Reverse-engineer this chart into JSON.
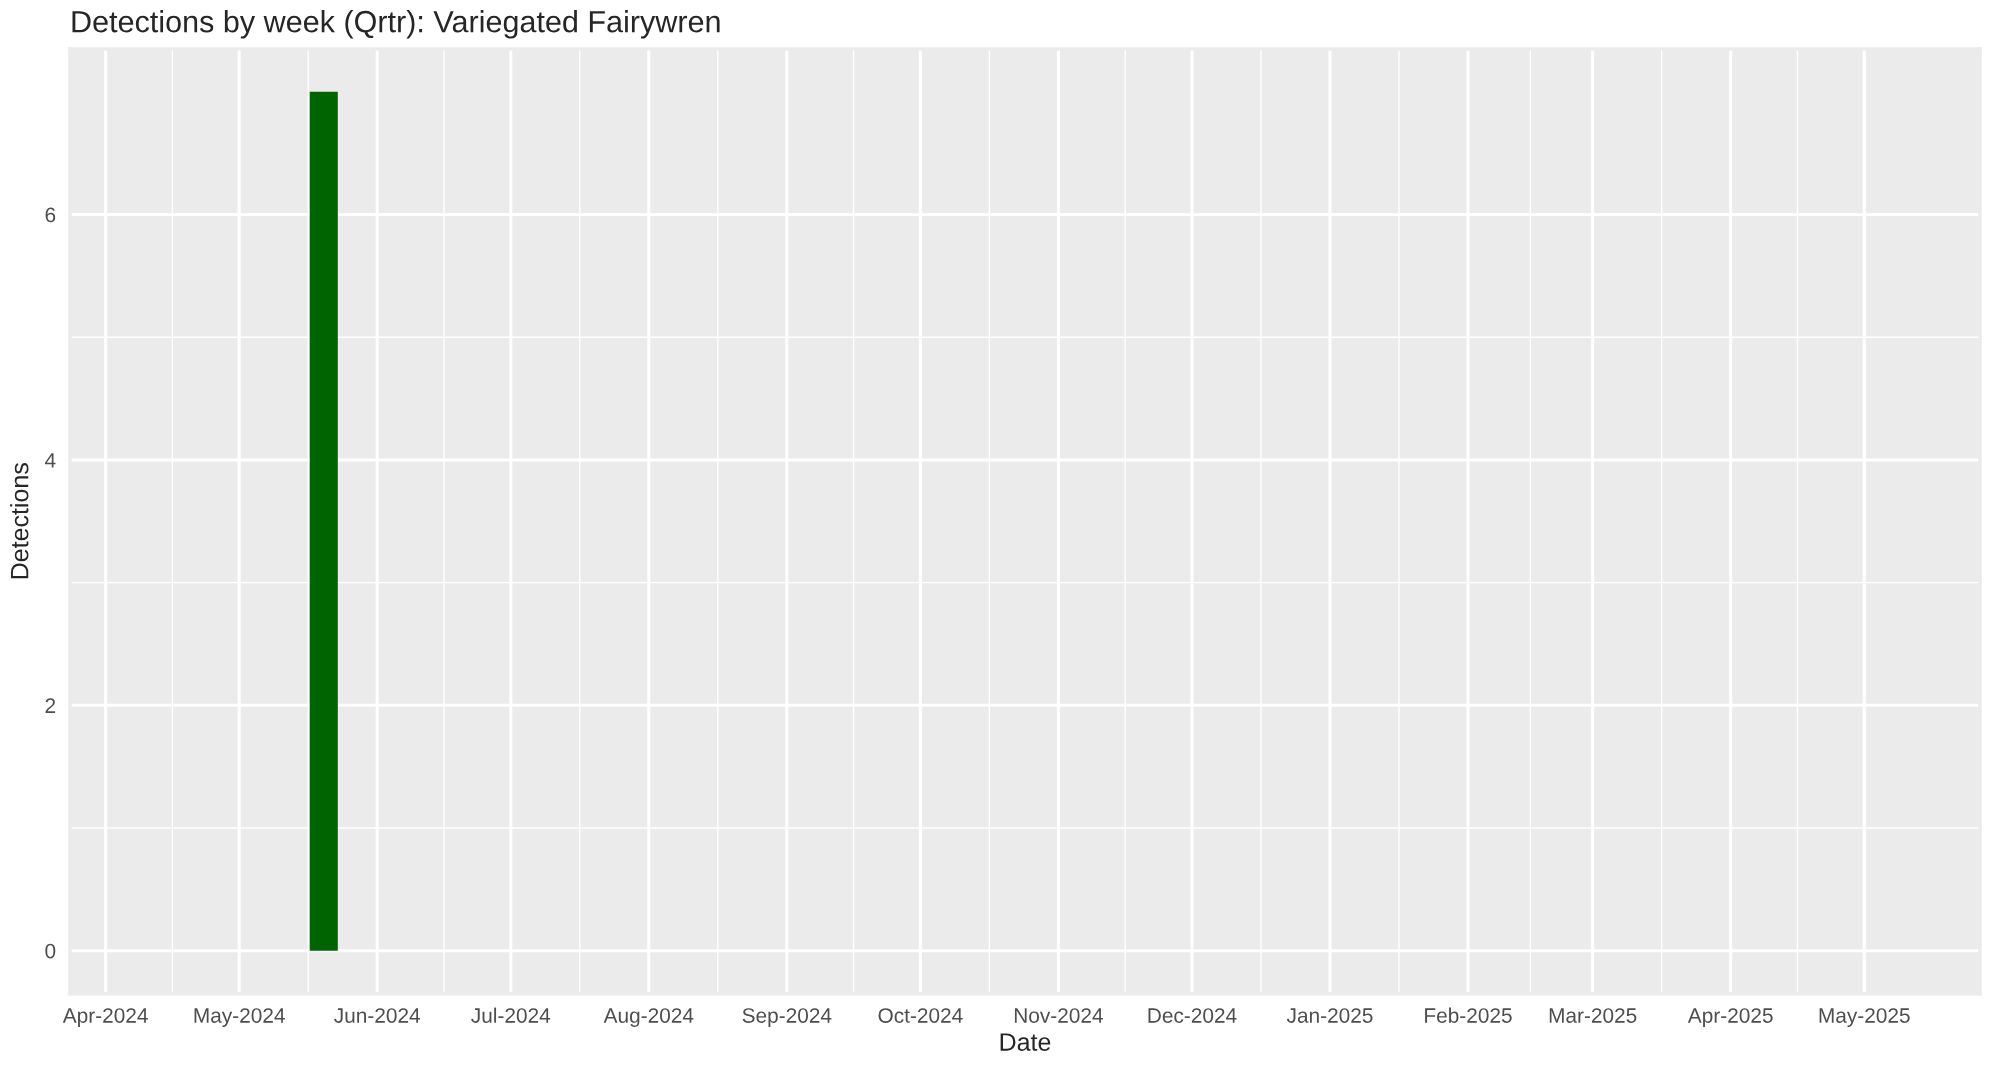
{
  "chart_data": {
    "type": "bar",
    "title": "Detections by week (Qrtr): Variegated Fairywren",
    "xlabel": "Date",
    "ylabel": "Detections",
    "x": [
      "2024-05-20"
    ],
    "series": [
      {
        "color": "#006400",
        "values": [
          7
        ]
      }
    ],
    "xlim": [
      "2024-03-24",
      "2025-05-27"
    ],
    "xticks": [
      {
        "value": "2024-04-01",
        "label": "Apr-2024"
      },
      {
        "value": "2024-05-01",
        "label": "May-2024"
      },
      {
        "value": "2024-06-01",
        "label": "Jun-2024"
      },
      {
        "value": "2024-07-01",
        "label": "Jul-2024"
      },
      {
        "value": "2024-08-01",
        "label": "Aug-2024"
      },
      {
        "value": "2024-09-01",
        "label": "Sep-2024"
      },
      {
        "value": "2024-10-01",
        "label": "Oct-2024"
      },
      {
        "value": "2024-11-01",
        "label": "Nov-2024"
      },
      {
        "value": "2024-12-01",
        "label": "Dec-2024"
      },
      {
        "value": "2025-01-01",
        "label": "Jan-2025"
      },
      {
        "value": "2025-02-01",
        "label": "Feb-2025"
      },
      {
        "value": "2025-03-01",
        "label": "Mar-2025"
      },
      {
        "value": "2025-04-01",
        "label": "Apr-2025"
      },
      {
        "value": "2025-05-01",
        "label": "May-2025"
      }
    ],
    "ylim": [
      -0.35,
      7.35
    ],
    "yticks": [
      0,
      2,
      4,
      6
    ],
    "grid": true
  }
}
